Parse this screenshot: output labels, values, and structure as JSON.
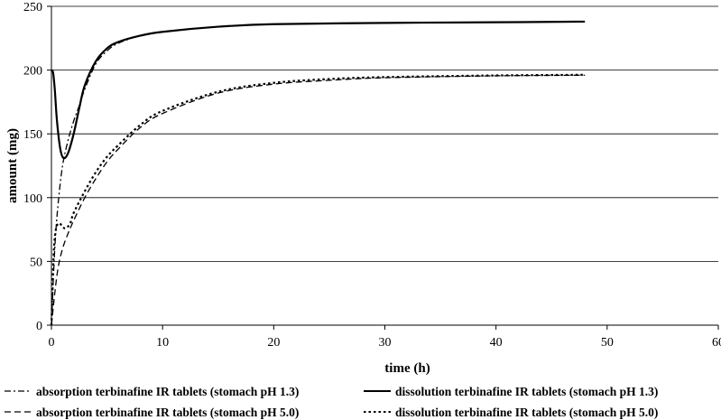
{
  "chart_data": {
    "type": "line",
    "title": "",
    "xlabel": "time (h)",
    "ylabel": "amount (mg)",
    "xlim": [
      0,
      60
    ],
    "ylim": [
      0,
      250
    ],
    "x_ticks": [
      "0",
      "10",
      "20",
      "30",
      "40",
      "50",
      "60"
    ],
    "y_ticks": [
      "0",
      "50",
      "100",
      "150",
      "200",
      "250"
    ],
    "grid": "horizontal",
    "legend_position": "bottom",
    "series": [
      {
        "name": "absorption terbinafine IR tablets (stomach pH 1.3)",
        "style": "dashdot",
        "color": "#000000",
        "x": [
          0,
          0.3,
          0.6,
          1,
          1.5,
          2,
          2.5,
          3,
          4,
          5,
          6,
          8,
          10,
          15,
          20,
          30,
          40,
          48
        ],
        "y": [
          0,
          60,
          95,
          125,
          145,
          160,
          172,
          185,
          205,
          215,
          221,
          227,
          230,
          234,
          236,
          237,
          237.5,
          238
        ]
      },
      {
        "name": "dissolution terbinafine IR tablets (stomach pH 1.3)",
        "style": "solid",
        "color": "#000000",
        "x": [
          0,
          0.15,
          0.3,
          0.5,
          0.8,
          1.1,
          1.5,
          2,
          2.5,
          3,
          4,
          5,
          6,
          8,
          10,
          15,
          20,
          30,
          40,
          48
        ],
        "y": [
          200,
          198,
          185,
          160,
          138,
          131,
          135,
          150,
          170,
          188,
          207,
          217,
          222,
          227,
          230,
          234,
          236,
          237,
          237.5,
          238
        ]
      },
      {
        "name": "absorption terbinafine IR tablets (stomach pH 5.0)",
        "style": "dashed",
        "color": "#000000",
        "x": [
          0,
          0.3,
          0.6,
          1,
          1.5,
          2,
          3,
          4,
          5,
          6,
          8,
          10,
          15,
          20,
          25,
          30,
          40,
          48
        ],
        "y": [
          0,
          25,
          45,
          60,
          72,
          82,
          100,
          115,
          128,
          138,
          155,
          166,
          182,
          189,
          192,
          194,
          195.5,
          196
        ]
      },
      {
        "name": "dissolution terbinafine IR tablets (stomach pH 5.0)",
        "style": "dotted",
        "color": "#000000",
        "x": [
          0,
          0.2,
          0.4,
          0.7,
          1,
          1.3,
          1.7,
          2,
          3,
          4,
          5,
          6,
          8,
          10,
          15,
          20,
          25,
          30,
          40,
          48
        ],
        "y": [
          0,
          55,
          75,
          80,
          77,
          76,
          80,
          88,
          105,
          120,
          132,
          141,
          157,
          168,
          183,
          190,
          193,
          194.5,
          195.8,
          196.3
        ]
      }
    ]
  }
}
